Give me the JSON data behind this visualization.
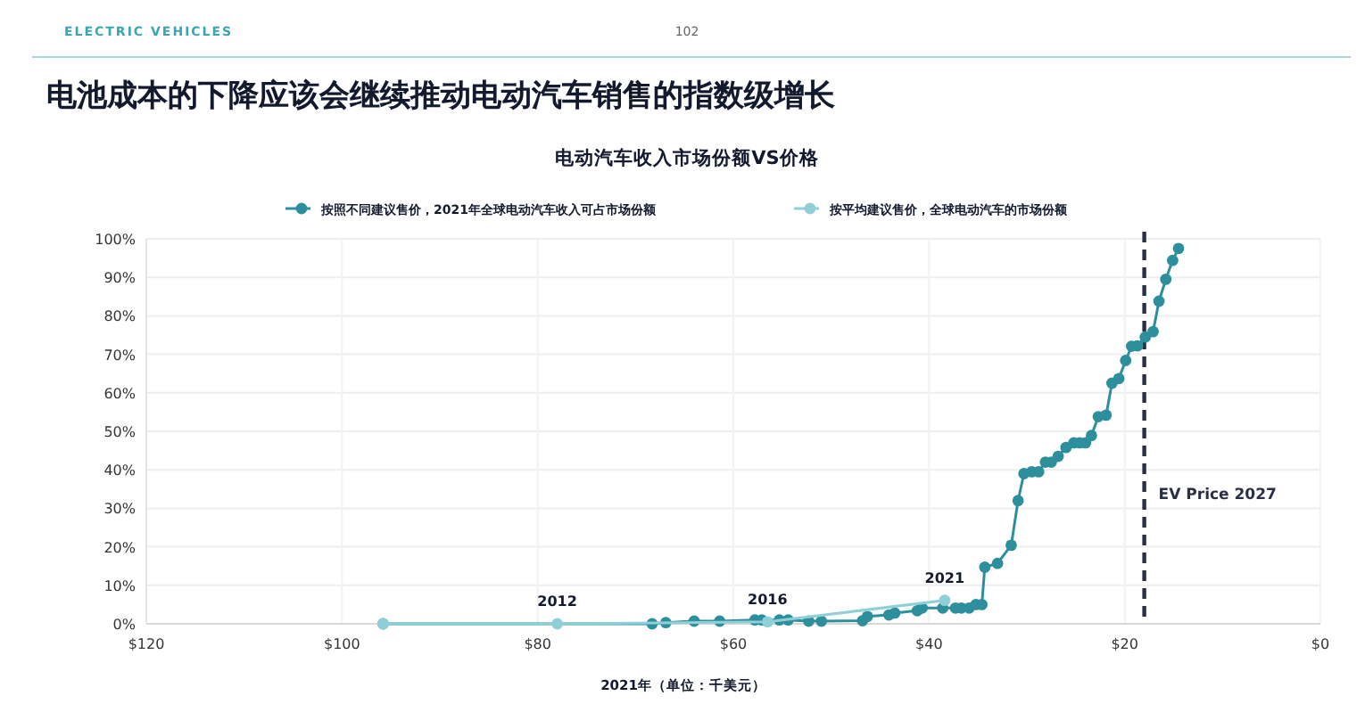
{
  "chart_data": {
    "type": "line",
    "title": "电池成本的下降应该会继续推动电动汽车销售的指数级增长",
    "subtitle": "电动汽车收入市场份额VS价格",
    "xlabel": "2021年（单位：千美元）",
    "annotations": [
      "ELECTRIC VEHICLES",
      "102",
      {
        "text": "2012",
        "x": 78,
        "y": 0
      },
      {
        "text": "2016",
        "x": 56.5,
        "y": 0.5
      },
      {
        "text": "2021",
        "x": 38.4,
        "y": 6.1
      }
    ],
    "xlim": [
      120,
      0
    ],
    "xticks": [
      {
        "value": 120,
        "label": "$120"
      },
      {
        "value": 100,
        "label": "$100"
      },
      {
        "value": 80,
        "label": "$80"
      },
      {
        "value": 60,
        "label": "$60"
      },
      {
        "value": 40,
        "label": "$40"
      },
      {
        "value": 20,
        "label": "$20"
      },
      {
        "value": 0,
        "label": "$0"
      }
    ],
    "ylim": [
      0,
      100
    ],
    "yticks": [
      {
        "value": 0,
        "label": "0%"
      },
      {
        "value": 10,
        "label": "10%"
      },
      {
        "value": 20,
        "label": "20%"
      },
      {
        "value": 30,
        "label": "30%"
      },
      {
        "value": 40,
        "label": "40%"
      },
      {
        "value": 50,
        "label": "50%"
      },
      {
        "value": 60,
        "label": "60%"
      },
      {
        "value": 70,
        "label": "70%"
      },
      {
        "value": 80,
        "label": "80%"
      },
      {
        "value": 90,
        "label": "90%"
      },
      {
        "value": 100,
        "label": "100%"
      }
    ],
    "grid": true,
    "legend": "top",
    "marker": "circle",
    "line_style": "solid",
    "ref_lines": [
      {
        "axis": "x",
        "value": 18,
        "label": "EV Price 2027",
        "color": "#2a2f45",
        "line_style": "dashed"
      }
    ],
    "series": [
      {
        "name": "按照不同建议售价，2021年全球电动汽车收入可占市场份额",
        "color": "#2e8f9c",
        "x": [
          95.8,
          68.3,
          66.9,
          64,
          61.4,
          57.8,
          57.1,
          55.3,
          54.4,
          52.3,
          51,
          46.8,
          46.3,
          44.1,
          43.5,
          41.2,
          40.7,
          38.6,
          37.3,
          36.7,
          35.9,
          35.2,
          34.6,
          34.3,
          33,
          31.6,
          30.9,
          30.3,
          29.5,
          28.8,
          28.1,
          27.5,
          26.8,
          26,
          25.2,
          24.6,
          24,
          23.4,
          22.7,
          21.9,
          21.3,
          20.6,
          19.9,
          19.3,
          18.7,
          17.9,
          17.1,
          16.5,
          15.8,
          15.1,
          14.5
        ],
        "values": [
          0,
          0,
          0.3,
          0.7,
          0.7,
          1,
          1,
          1,
          1,
          0.7,
          0.7,
          0.8,
          1.9,
          2.3,
          2.8,
          3.4,
          4.1,
          4.1,
          4.1,
          4.1,
          4.1,
          5,
          5,
          14.7,
          15.7,
          20.4,
          32,
          39,
          39.5,
          39.5,
          42,
          42,
          43.5,
          45.8,
          47,
          47,
          47,
          48.9,
          53.8,
          54.2,
          62.5,
          63.7,
          68.4,
          72.1,
          72.2,
          74.5,
          75.9,
          83.8,
          89.5,
          94.4,
          97.5
        ]
      },
      {
        "name": "按平均建议售价，全球电动汽车的市场份额",
        "color": "#8fd0d8",
        "x": [
          95.8,
          78,
          56.5,
          38.4
        ],
        "values": [
          0,
          0,
          0.5,
          6.1
        ]
      }
    ]
  }
}
